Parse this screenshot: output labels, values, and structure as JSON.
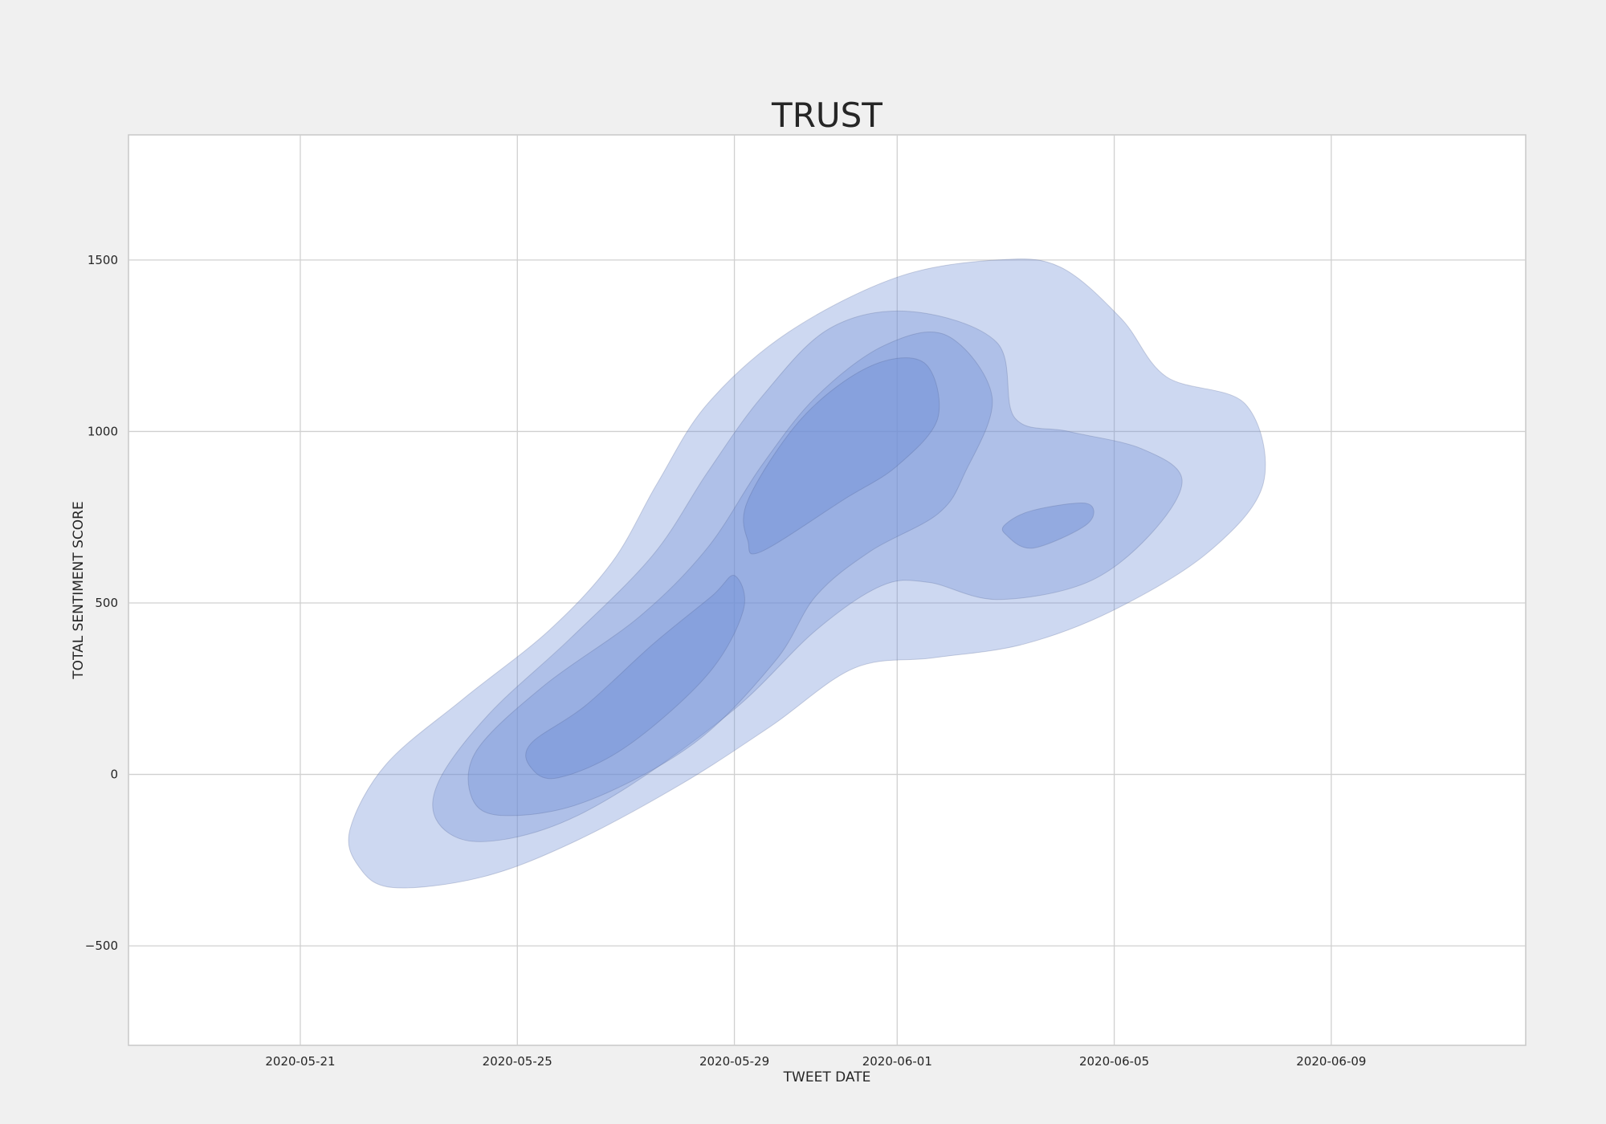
{
  "chart_data": {
    "type": "kde-contour",
    "title": "TRUST",
    "xlabel": "TWEET DATE",
    "ylabel": "TOTAL SENTIMENT SCORE",
    "x_ticks": [
      "2020-05-21",
      "2020-05-25",
      "2020-05-29",
      "2020-06-01",
      "2020-06-05",
      "2020-06-09"
    ],
    "y_ticks": [
      -500,
      0,
      500,
      1000,
      1500
    ],
    "y_tick_labels": [
      "−500",
      "0",
      "500",
      "1000",
      "1500"
    ],
    "xlim": [
      "2020-05-17T20:00",
      "2020-06-12T14:00"
    ],
    "ylim": [
      -790,
      1865
    ],
    "grid": true,
    "fill_color": "#7090d8",
    "levels": [
      {
        "name": "level-1",
        "opacity": 0.35,
        "polygons": [
          [
            [
              "2020-05-22T02:00",
              -270
            ],
            [
              "2020-05-22T17:00",
              -330
            ],
            [
              "2020-05-24T08:00",
              -300
            ],
            [
              "2020-05-26T00:00",
              -200
            ],
            [
              "2020-05-28T00:00",
              -30
            ],
            [
              "2020-05-29T16:00",
              140
            ],
            [
              "2020-05-31T05:00",
              310
            ],
            [
              "2020-06-01T16:00",
              340
            ],
            [
              "2020-06-03T08:00",
              380
            ],
            [
              "2020-06-05T00:00",
              480
            ],
            [
              "2020-06-06T18:00",
              650
            ],
            [
              "2020-06-07T18:00",
              850
            ],
            [
              "2020-06-07T10:00",
              1080
            ],
            [
              "2020-06-05T23:00",
              1160
            ],
            [
              "2020-06-05T03:00",
              1330
            ],
            [
              "2020-06-04T00:00",
              1480
            ],
            [
              "2020-06-02T20:00",
              1500
            ],
            [
              "2020-06-01T00:00",
              1450
            ],
            [
              "2020-05-30T00:00",
              1290
            ],
            [
              "2020-05-28T12:00",
              1080
            ],
            [
              "2020-05-27T14:00",
              850
            ],
            [
              "2020-05-26T18:00",
              620
            ],
            [
              "2020-05-25T14:00",
              420
            ],
            [
              "2020-05-24T00:00",
              220
            ],
            [
              "2020-05-22T14:00",
              30
            ],
            [
              "2020-05-21T22:00",
              -160
            ]
          ]
        ]
      },
      {
        "name": "level-2",
        "opacity": 0.32,
        "polygons": [
          [
            [
              "2020-05-23T12:00",
              -130
            ],
            [
              "2020-05-24T04:00",
              -195
            ],
            [
              "2020-05-25T12:00",
              -160
            ],
            [
              "2020-05-27T00:00",
              -40
            ],
            [
              "2020-05-29T00:00",
              190
            ],
            [
              "2020-05-30T12:00",
              420
            ],
            [
              "2020-05-31T17:00",
              550
            ],
            [
              "2020-06-01T14:00",
              560
            ],
            [
              "2020-06-02T20:00",
              510
            ],
            [
              "2020-06-04T12:00",
              560
            ],
            [
              "2020-06-05T16:00",
              700
            ],
            [
              "2020-06-06T06:00",
              860
            ],
            [
              "2020-06-05T12:00",
              950
            ],
            [
              "2020-06-04T04:00",
              1000
            ],
            [
              "2020-06-03T04:00",
              1040
            ],
            [
              "2020-06-02T20:00",
              1260
            ],
            [
              "2020-06-01T06:00",
              1350
            ],
            [
              "2020-05-30T18:00",
              1300
            ],
            [
              "2020-05-29T12:00",
              1100
            ],
            [
              "2020-05-28T12:00",
              880
            ],
            [
              "2020-05-27T12:00",
              640
            ],
            [
              "2020-05-26T00:00",
              400
            ],
            [
              "2020-05-24T12:00",
              180
            ],
            [
              "2020-05-23T14:00",
              -10
            ]
          ]
        ]
      },
      {
        "name": "level-3",
        "opacity": 0.35,
        "polygons": [
          [
            [
              "2020-05-24T04:00",
              -70
            ],
            [
              "2020-05-24T18:00",
              -120
            ],
            [
              "2020-05-26T06:00",
              -80
            ],
            [
              "2020-05-28T06:00",
              90
            ],
            [
              "2020-05-29T18:00",
              330
            ],
            [
              "2020-05-30T12:00",
              520
            ],
            [
              "2020-05-31T12:00",
              650
            ],
            [
              "2020-06-01T18:00",
              760
            ],
            [
              "2020-06-02T06:00",
              880
            ],
            [
              "2020-06-02T18:00",
              1100
            ],
            [
              "2020-06-01T22:00",
              1280
            ],
            [
              "2020-06-00T18:00",
              1250
            ],
            [
              "2020-05-30T12:00",
              1100
            ],
            [
              "2020-05-29T12:00",
              900
            ],
            [
              "2020-05-28T12:00",
              660
            ],
            [
              "2020-05-27T06:00",
              460
            ],
            [
              "2020-05-25T12:00",
              260
            ],
            [
              "2020-05-24T06:00",
              70
            ]
          ]
        ]
      },
      {
        "name": "level-4",
        "opacity": 0.45,
        "polygons": [
          [
            [
              "2020-05-25T06:00",
              20
            ],
            [
              "2020-05-25T18:00",
              -10
            ],
            [
              "2020-05-27T00:00",
              80
            ],
            [
              "2020-05-28T12:00",
              290
            ],
            [
              "2020-05-29T04:00",
              480
            ],
            [
              "2020-05-29T00:00",
              580
            ],
            [
              "2020-05-28T14:00",
              520
            ],
            [
              "2020-05-27T12:00",
              380
            ],
            [
              "2020-05-26T06:00",
              200
            ],
            [
              "2020-05-25T06:00",
              90
            ]
          ],
          [
            [
              "2020-05-29T06:00",
              680
            ],
            [
              "2020-05-29T12:00",
              650
            ],
            [
              "2020-05-31T00:00",
              800
            ],
            [
              "2020-06-01T00:00",
              900
            ],
            [
              "2020-06-01T18:00",
              1040
            ],
            [
              "2020-06-01T12:00",
              1200
            ],
            [
              "2020-05-31T12:00",
              1190
            ],
            [
              "2020-05-30T06:00",
              1040
            ],
            [
              "2020-05-29T06:00",
              800
            ]
          ],
          [
            [
              "2020-06-03T00:00",
              700
            ],
            [
              "2020-06-03T12:00",
              660
            ],
            [
              "2020-06-04T12:00",
              730
            ],
            [
              "2020-06-04T12:00",
              790
            ],
            [
              "2020-06-03T12:00",
              770
            ],
            [
              "2020-06-03T00:00",
              730
            ]
          ]
        ]
      }
    ]
  }
}
